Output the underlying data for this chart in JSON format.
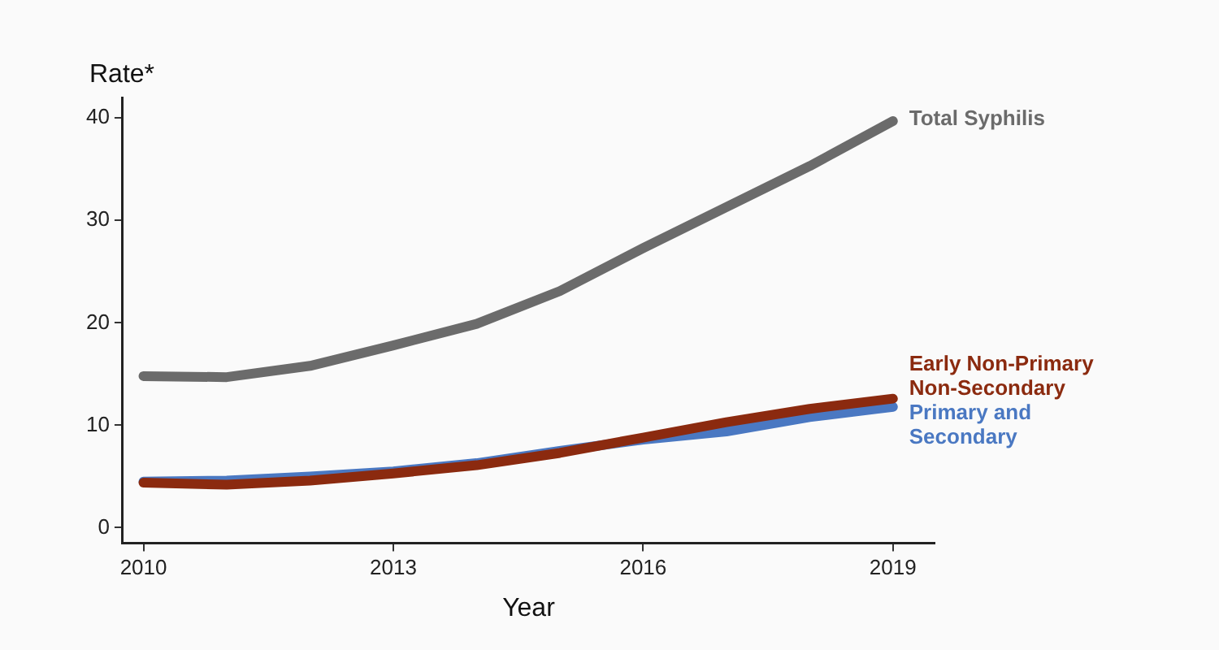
{
  "chart_data": {
    "type": "line",
    "xlabel": "Year",
    "ylabel": "Rate*",
    "x": [
      2010,
      2011,
      2012,
      2013,
      2014,
      2015,
      2016,
      2017,
      2018,
      2019
    ],
    "series": [
      {
        "name": "Total Syphilis",
        "color": "#6b6b6b",
        "values": [
          14.8,
          14.7,
          15.8,
          17.8,
          19.9,
          23.1,
          27.3,
          31.3,
          35.3,
          39.7
        ]
      },
      {
        "name": "Primary and Secondary",
        "color": "#4a78c2",
        "values": [
          4.5,
          4.6,
          5.0,
          5.5,
          6.3,
          7.5,
          8.6,
          9.4,
          10.8,
          11.8
        ]
      },
      {
        "name": "Early Non-Primary Non-Secondary",
        "color": "#8b2a0f",
        "values": [
          4.4,
          4.2,
          4.6,
          5.3,
          6.1,
          7.3,
          8.8,
          10.3,
          11.6,
          12.6
        ]
      }
    ],
    "xlim": [
      2009.75,
      2019.5
    ],
    "xticks": [
      2010,
      2013,
      2016,
      2019
    ],
    "ylim": [
      -1.5,
      42
    ],
    "yticks": [
      0,
      10,
      20,
      30,
      40
    ],
    "grid": false,
    "legend": false,
    "marker": "none",
    "line_style": "solid"
  }
}
